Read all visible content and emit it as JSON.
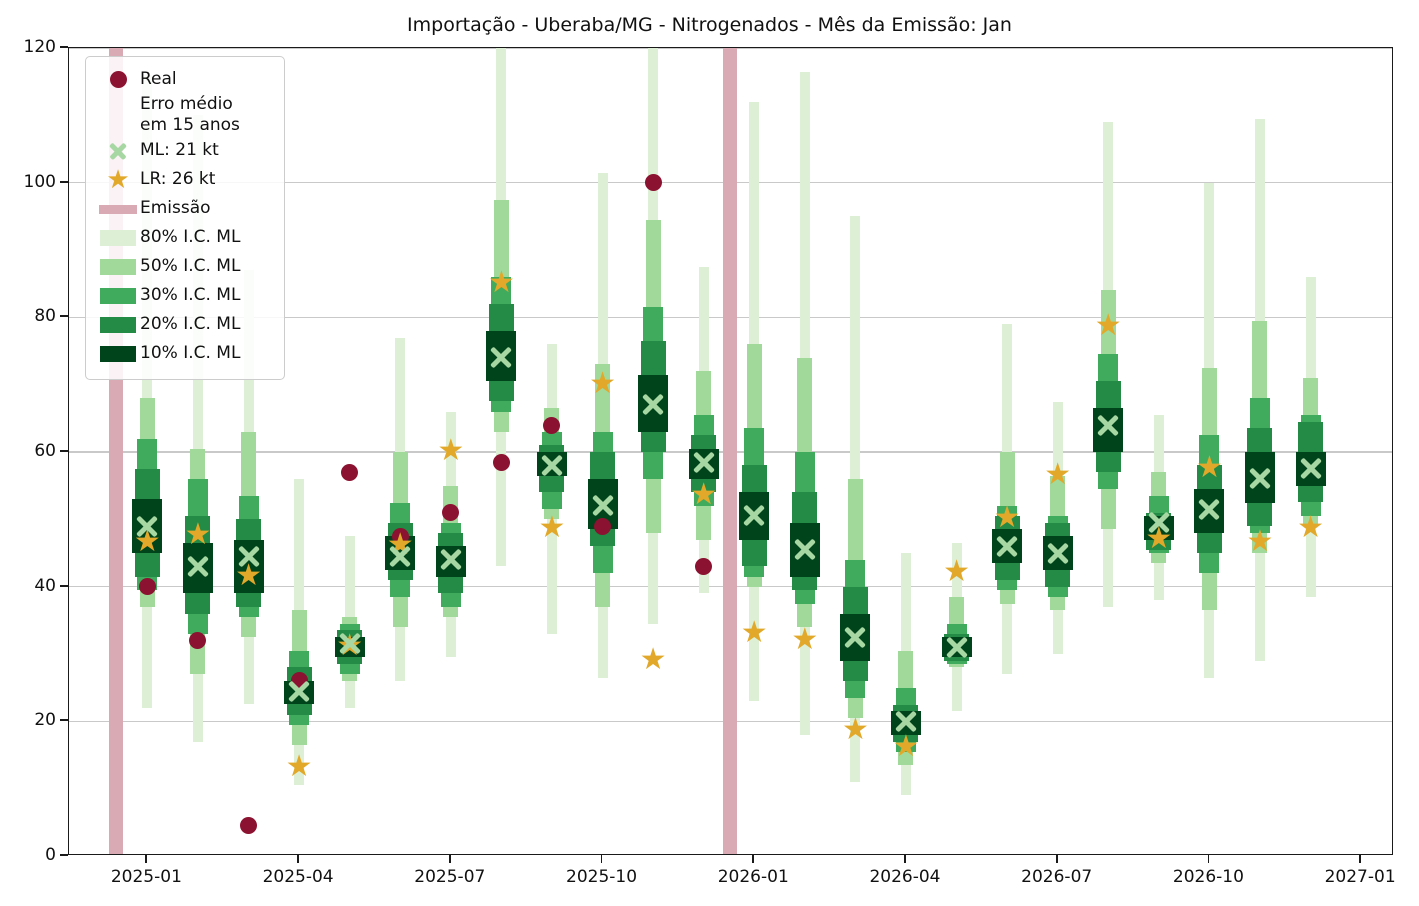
{
  "title": "Importação - Uberaba/MG - Nitrogenados - Mês da Emissão: Jan",
  "colors": {
    "real": "#8b1230",
    "ml_x": "#a7d7a2",
    "lr_star": "#e2a829",
    "emission": "#d9aab4",
    "ci80": "#ddf0d6",
    "ci50": "#a1d99b",
    "ci30": "#41ab5d",
    "ci20": "#238b45",
    "ci10": "#00441b",
    "grid": "#c9c9c9",
    "spine": "#1a1a1a"
  },
  "legend": {
    "items": [
      {
        "marker": "dot",
        "label": "Real"
      },
      {
        "marker": "none",
        "label": "Erro médio em 15 anos"
      },
      {
        "marker": "x",
        "label": "ML: 21 kt"
      },
      {
        "marker": "star",
        "label": "LR: 26 kt"
      },
      {
        "marker": "band",
        "label": "Emissão"
      },
      {
        "marker": "ci80",
        "label": "80% I.C. ML"
      },
      {
        "marker": "ci50",
        "label": "50% I.C. ML"
      },
      {
        "marker": "ci30",
        "label": "30% I.C. ML"
      },
      {
        "marker": "ci20",
        "label": "20% I.C. ML"
      },
      {
        "marker": "ci10",
        "label": "10% I.C. ML"
      }
    ]
  },
  "chart_data": {
    "type": "bar",
    "subtype": "fan-forecast-intervals",
    "title": "Importação - Uberaba/MG - Nitrogenados - Mês da Emissão: Jan",
    "xlabel": "",
    "ylabel": "",
    "unit": "kt",
    "ylim": [
      0,
      120
    ],
    "y_ticks": [
      0,
      20,
      40,
      60,
      80,
      100,
      120
    ],
    "x_ticks": [
      {
        "m": 0,
        "label": "2025-01"
      },
      {
        "m": 3,
        "label": "2025-04"
      },
      {
        "m": 6,
        "label": "2025-07"
      },
      {
        "m": 9,
        "label": "2025-10"
      },
      {
        "m": 12,
        "label": "2026-01"
      },
      {
        "m": 15,
        "label": "2026-04"
      },
      {
        "m": 18,
        "label": "2026-07"
      },
      {
        "m": 21,
        "label": "2026-10"
      },
      {
        "m": 24,
        "label": "2027-01"
      }
    ],
    "xlim_months": [
      -1.55,
      24.65
    ],
    "grid": true,
    "legend_position": "upper-left",
    "emission_bands": [
      {
        "center_month": -0.62,
        "width_month": 0.28,
        "date_approx": "2024-12"
      },
      {
        "center_month": 11.52,
        "width_month": 0.28,
        "date_approx": "2025-12"
      }
    ],
    "points": [
      {
        "month": "2025-01",
        "m": 0,
        "p80": [
          22,
          116
        ],
        "p50": [
          37,
          68
        ],
        "p30": [
          39.5,
          62
        ],
        "p20": [
          41.5,
          57.5
        ],
        "p10": [
          45,
          53
        ],
        "ml": 49,
        "lr": 46.5,
        "real": 40
      },
      {
        "month": "2025-02",
        "m": 1,
        "p80": [
          17,
          110
        ],
        "p50": [
          27,
          60.5
        ],
        "p30": [
          33,
          56
        ],
        "p20": [
          36,
          50.5
        ],
        "p10": [
          39,
          46.5
        ],
        "ml": 43,
        "lr": 47.5,
        "real": 32
      },
      {
        "month": "2025-03",
        "m": 2,
        "p80": [
          22.5,
          87
        ],
        "p50": [
          32.5,
          63
        ],
        "p30": [
          35.5,
          53.5
        ],
        "p20": [
          37,
          50
        ],
        "p10": [
          39,
          47
        ],
        "ml": 44.5,
        "lr": 41.5,
        "real": 4.5
      },
      {
        "month": "2025-04",
        "m": 3,
        "p80": [
          10.5,
          56
        ],
        "p50": [
          16.5,
          36.5
        ],
        "p30": [
          19.5,
          30.5
        ],
        "p20": [
          21,
          28
        ],
        "p10": [
          22.5,
          26
        ],
        "ml": 24.5,
        "lr": 13,
        "real": 26
      },
      {
        "month": "2025-05",
        "m": 4,
        "p80": [
          22,
          47.5
        ],
        "p50": [
          26,
          35.5
        ],
        "p30": [
          27,
          34.5
        ],
        "p20": [
          28.5,
          33.5
        ],
        "p10": [
          29.5,
          32.5
        ],
        "ml": 31.5,
        "lr": 31,
        "real": 57
      },
      {
        "month": "2025-06",
        "m": 5,
        "p80": [
          26,
          77
        ],
        "p50": [
          34,
          60
        ],
        "p30": [
          38.5,
          52.5
        ],
        "p20": [
          41,
          49.5
        ],
        "p10": [
          42.5,
          47.5
        ],
        "ml": 44.5,
        "lr": 46,
        "real": 47.5
      },
      {
        "month": "2025-07",
        "m": 6,
        "p80": [
          29.5,
          66
        ],
        "p50": [
          35.5,
          55
        ],
        "p30": [
          37,
          49.5
        ],
        "p20": [
          39,
          48
        ],
        "p10": [
          41.5,
          46
        ],
        "ml": 44,
        "lr": 60,
        "real": 51
      },
      {
        "month": "2025-08",
        "m": 7,
        "p80": [
          43,
          120
        ],
        "p50": [
          63,
          97.5
        ],
        "p30": [
          66,
          86
        ],
        "p20": [
          67.5,
          82
        ],
        "p10": [
          70.5,
          78
        ],
        "ml": 74,
        "lr": 85,
        "real": 58.5
      },
      {
        "month": "2025-09",
        "m": 8,
        "p80": [
          33,
          76
        ],
        "p50": [
          50,
          66.5
        ],
        "p30": [
          51.5,
          63
        ],
        "p20": [
          54,
          61
        ],
        "p10": [
          56.5,
          60
        ],
        "ml": 58,
        "lr": 48.5,
        "real": 64
      },
      {
        "month": "2025-10",
        "m": 9,
        "p80": [
          26.5,
          101.5
        ],
        "p50": [
          37,
          73
        ],
        "p30": [
          42,
          63
        ],
        "p20": [
          46,
          60
        ],
        "p10": [
          48.5,
          56
        ],
        "ml": 52,
        "lr": 70,
        "real": 49
      },
      {
        "month": "2025-11",
        "m": 10,
        "p80": [
          34.5,
          120
        ],
        "p50": [
          48,
          94.5
        ],
        "p30": [
          56,
          81.5
        ],
        "p20": [
          60,
          76.5
        ],
        "p10": [
          63,
          71.5
        ],
        "ml": 67,
        "lr": 29,
        "real": 100
      },
      {
        "month": "2025-12",
        "m": 11,
        "p80": [
          39,
          87.5
        ],
        "p50": [
          47,
          72
        ],
        "p30": [
          52,
          65.5
        ],
        "p20": [
          54,
          62.5
        ],
        "p10": [
          56,
          60.5
        ],
        "ml": 58.5,
        "lr": 53.5,
        "real": 43
      },
      {
        "month": "2026-01",
        "m": 12,
        "p80": [
          23,
          112
        ],
        "p50": [
          40,
          76
        ],
        "p30": [
          41.5,
          63.5
        ],
        "p20": [
          43,
          58
        ],
        "p10": [
          47,
          54
        ],
        "ml": 50.5,
        "lr": 33,
        "real": null
      },
      {
        "month": "2026-02",
        "m": 13,
        "p80": [
          18,
          116.5
        ],
        "p50": [
          34,
          74
        ],
        "p30": [
          37.5,
          60
        ],
        "p20": [
          39.5,
          54
        ],
        "p10": [
          41.5,
          49.5
        ],
        "ml": 45.5,
        "lr": 32,
        "real": null
      },
      {
        "month": "2026-03",
        "m": 14,
        "p80": [
          11,
          95
        ],
        "p50": [
          20.5,
          56
        ],
        "p30": [
          23.5,
          44
        ],
        "p20": [
          26,
          40
        ],
        "p10": [
          29,
          36
        ],
        "ml": 32.5,
        "lr": 18.5,
        "real": null
      },
      {
        "month": "2026-04",
        "m": 15,
        "p80": [
          9,
          45
        ],
        "p50": [
          13.5,
          30.5
        ],
        "p30": [
          15.5,
          25
        ],
        "p20": [
          17,
          22.5
        ],
        "p10": [
          18,
          21.5
        ],
        "ml": 20,
        "lr": 16,
        "real": null
      },
      {
        "month": "2026-05",
        "m": 16,
        "p80": [
          21.5,
          46.5
        ],
        "p50": [
          28,
          38.5
        ],
        "p30": [
          28.5,
          34.5
        ],
        "p20": [
          29,
          33
        ],
        "p10": [
          29.5,
          32.5
        ],
        "ml": 31,
        "lr": 42,
        "real": null
      },
      {
        "month": "2026-06",
        "m": 17,
        "p80": [
          27,
          79
        ],
        "p50": [
          37.5,
          60
        ],
        "p30": [
          39.5,
          52
        ],
        "p20": [
          41,
          50.5
        ],
        "p10": [
          43.5,
          48.5
        ],
        "ml": 46,
        "lr": 50,
        "real": null
      },
      {
        "month": "2026-07",
        "m": 18,
        "p80": [
          30,
          67.5
        ],
        "p50": [
          36.5,
          56.5
        ],
        "p30": [
          38.5,
          50.5
        ],
        "p20": [
          40,
          49.5
        ],
        "p10": [
          42.5,
          47.5
        ],
        "ml": 45,
        "lr": 56.5,
        "real": null
      },
      {
        "month": "2026-08",
        "m": 19,
        "p80": [
          37,
          109
        ],
        "p50": [
          48.5,
          84
        ],
        "p30": [
          54.5,
          74.5
        ],
        "p20": [
          57,
          70.5
        ],
        "p10": [
          60,
          66.5
        ],
        "ml": 64,
        "lr": 78.5,
        "real": null
      },
      {
        "month": "2026-09",
        "m": 20,
        "p80": [
          38,
          65.5
        ],
        "p50": [
          43.5,
          57
        ],
        "p30": [
          45,
          53.5
        ],
        "p20": [
          45.5,
          51
        ],
        "p10": [
          47,
          50.5
        ],
        "ml": 49.5,
        "lr": 47,
        "real": null
      },
      {
        "month": "2026-10",
        "m": 21,
        "p80": [
          26.5,
          100
        ],
        "p50": [
          36.5,
          72.5
        ],
        "p30": [
          42,
          62.5
        ],
        "p20": [
          45,
          58
        ],
        "p10": [
          48,
          54.5
        ],
        "ml": 51.5,
        "lr": 57.5,
        "real": null
      },
      {
        "month": "2026-11",
        "m": 22,
        "p80": [
          29,
          109.5
        ],
        "p50": [
          45,
          79.5
        ],
        "p30": [
          48,
          68
        ],
        "p20": [
          49,
          63.5
        ],
        "p10": [
          52.5,
          60
        ],
        "ml": 56,
        "lr": 46.5,
        "real": null
      },
      {
        "month": "2026-12",
        "m": 23,
        "p80": [
          38.5,
          86
        ],
        "p50": [
          49,
          71
        ],
        "p30": [
          50.5,
          65.5
        ],
        "p20": [
          52.5,
          64.5
        ],
        "p10": [
          55,
          60
        ],
        "ml": 57.5,
        "lr": 48.5,
        "real": null
      }
    ]
  }
}
